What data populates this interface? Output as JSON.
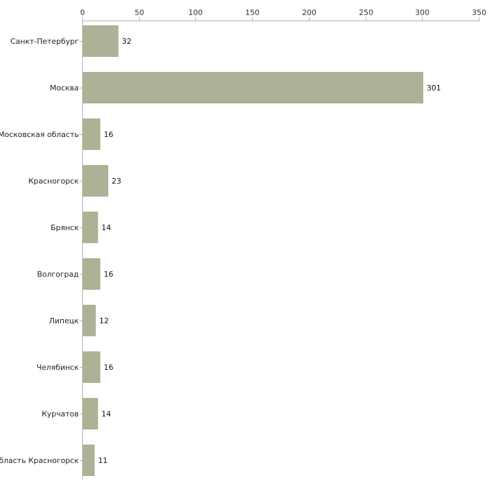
{
  "chart_data": {
    "type": "bar",
    "orientation": "horizontal",
    "title": "",
    "xlabel": "",
    "ylabel": "",
    "xlim": [
      0,
      350
    ],
    "xticks": [
      0,
      50,
      100,
      150,
      200,
      250,
      300,
      350
    ],
    "xtick_labels": [
      "0",
      "50",
      "100",
      "150",
      "200",
      "250",
      "300",
      "350"
    ],
    "axis_position": "top",
    "grid": false,
    "categories": [
      "Санкт-Петербург",
      "Москва",
      "Московская область",
      "Красногорск",
      "Брянск",
      "Волгоград",
      "Липецк",
      "Челябинск",
      "Курчатов",
      "область Красногорск"
    ],
    "values": [
      32,
      301,
      16,
      23,
      14,
      16,
      12,
      16,
      14,
      11
    ],
    "value_labels": [
      "32",
      "301",
      "16",
      "23",
      "14",
      "16",
      "12",
      "16",
      "14",
      "11"
    ],
    "bar_color": "#adb195",
    "axis_color": "#b0b0b0"
  }
}
